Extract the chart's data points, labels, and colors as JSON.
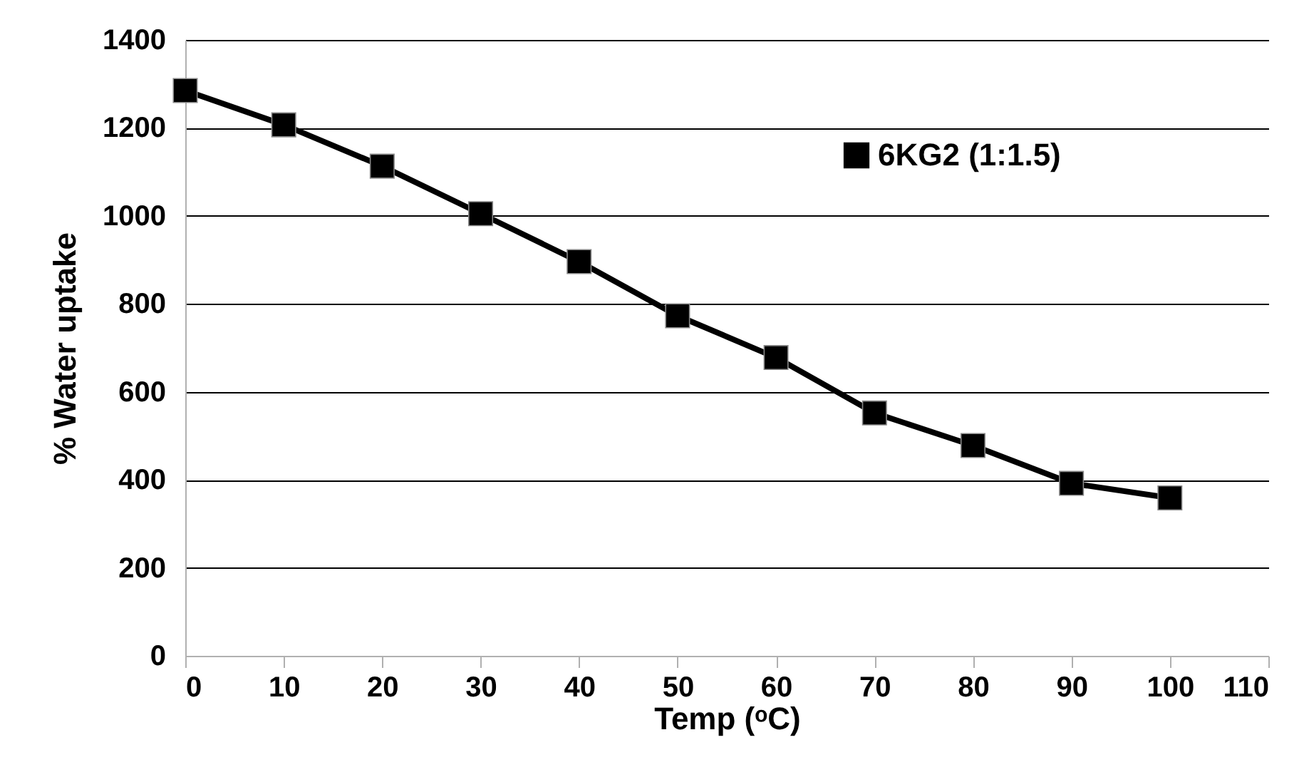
{
  "chart_data": {
    "type": "line",
    "xlabel": "Temp (ᵒC)",
    "ylabel": "% Water uptake",
    "x": [
      0,
      10,
      20,
      30,
      40,
      50,
      60,
      70,
      80,
      90,
      100
    ],
    "series": [
      {
        "name": "6KG2 (1:1.5)",
        "color": "#000000",
        "values": [
          1285,
          1207,
          1113,
          1005,
          896,
          773,
          678,
          552,
          478,
          392,
          359
        ]
      }
    ],
    "xlim": [
      0,
      110
    ],
    "xticks": [
      0,
      10,
      20,
      30,
      40,
      50,
      60,
      70,
      80,
      90,
      100,
      110
    ],
    "ylim": [
      0,
      1400
    ],
    "yticks": [
      0,
      200,
      400,
      600,
      800,
      1000,
      1200,
      1400
    ],
    "grid": "y",
    "legend": "top right",
    "marker": "square",
    "line_style": "solid"
  }
}
